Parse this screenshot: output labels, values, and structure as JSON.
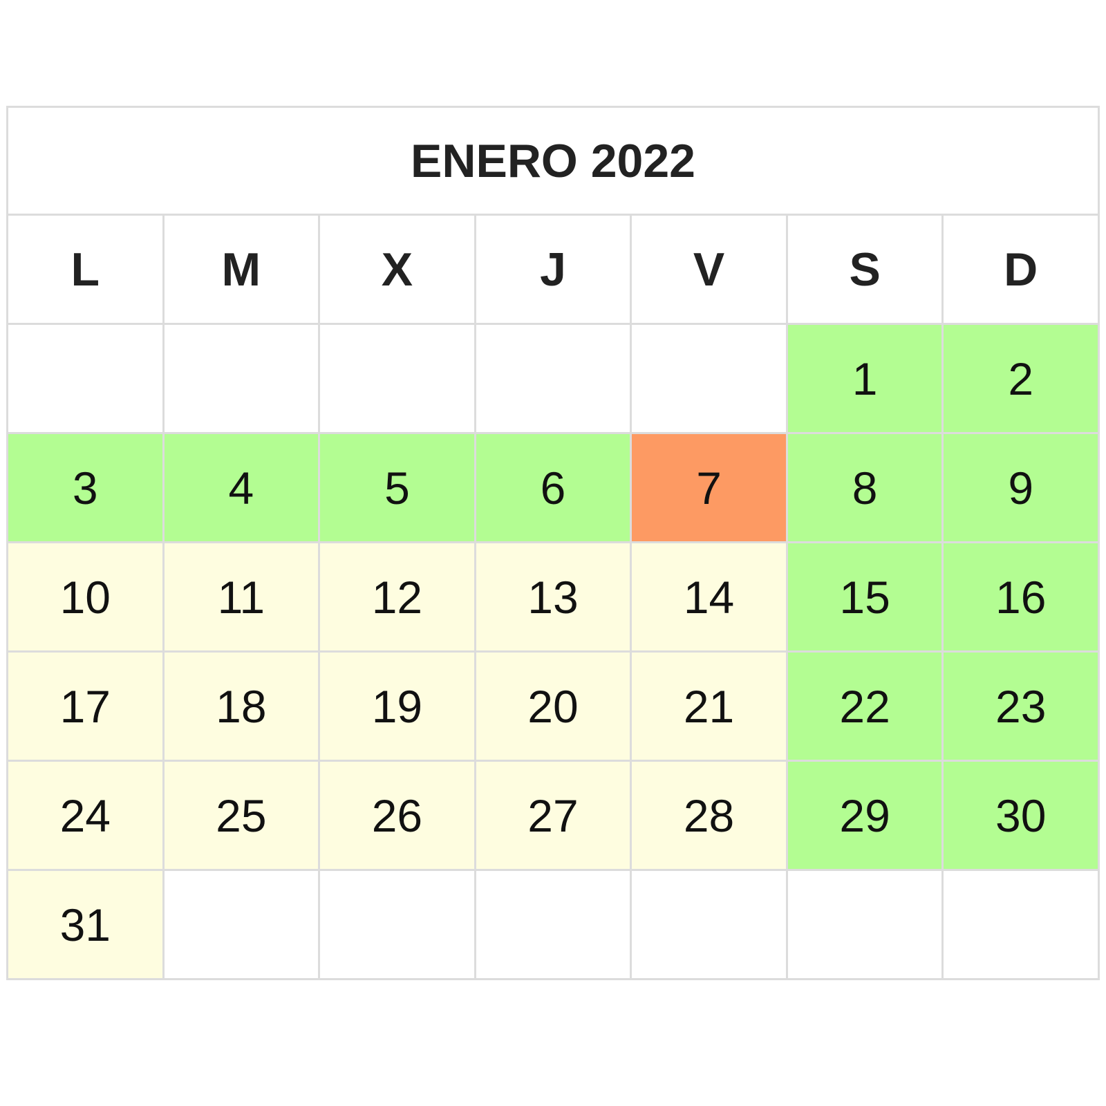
{
  "calendar": {
    "title": "ENERO 2022",
    "weekdays": [
      "L",
      "M",
      "X",
      "J",
      "V",
      "S",
      "D"
    ],
    "colors": {
      "weekend": "#b3fd92",
      "holiday_period": "#b3fd92",
      "highlight": "#fd9a63",
      "workday": "#fefde0",
      "empty": "#ffffff"
    },
    "weeks": [
      [
        {
          "day": "",
          "kind": "empty"
        },
        {
          "day": "",
          "kind": "empty"
        },
        {
          "day": "",
          "kind": "empty"
        },
        {
          "day": "",
          "kind": "empty"
        },
        {
          "day": "",
          "kind": "empty"
        },
        {
          "day": "1",
          "kind": "weekend"
        },
        {
          "day": "2",
          "kind": "weekend"
        }
      ],
      [
        {
          "day": "3",
          "kind": "holiday_period"
        },
        {
          "day": "4",
          "kind": "holiday_period"
        },
        {
          "day": "5",
          "kind": "holiday_period"
        },
        {
          "day": "6",
          "kind": "holiday_period"
        },
        {
          "day": "7",
          "kind": "highlight"
        },
        {
          "day": "8",
          "kind": "weekend"
        },
        {
          "day": "9",
          "kind": "weekend"
        }
      ],
      [
        {
          "day": "10",
          "kind": "workday"
        },
        {
          "day": "11",
          "kind": "workday"
        },
        {
          "day": "12",
          "kind": "workday"
        },
        {
          "day": "13",
          "kind": "workday"
        },
        {
          "day": "14",
          "kind": "workday"
        },
        {
          "day": "15",
          "kind": "weekend"
        },
        {
          "day": "16",
          "kind": "weekend"
        }
      ],
      [
        {
          "day": "17",
          "kind": "workday"
        },
        {
          "day": "18",
          "kind": "workday"
        },
        {
          "day": "19",
          "kind": "workday"
        },
        {
          "day": "20",
          "kind": "workday"
        },
        {
          "day": "21",
          "kind": "workday"
        },
        {
          "day": "22",
          "kind": "weekend"
        },
        {
          "day": "23",
          "kind": "weekend"
        }
      ],
      [
        {
          "day": "24",
          "kind": "workday"
        },
        {
          "day": "25",
          "kind": "workday"
        },
        {
          "day": "26",
          "kind": "workday"
        },
        {
          "day": "27",
          "kind": "workday"
        },
        {
          "day": "28",
          "kind": "workday"
        },
        {
          "day": "29",
          "kind": "weekend"
        },
        {
          "day": "30",
          "kind": "weekend"
        }
      ],
      [
        {
          "day": "31",
          "kind": "workday"
        },
        {
          "day": "",
          "kind": "empty"
        },
        {
          "day": "",
          "kind": "empty"
        },
        {
          "day": "",
          "kind": "empty"
        },
        {
          "day": "",
          "kind": "empty"
        },
        {
          "day": "",
          "kind": "empty"
        },
        {
          "day": "",
          "kind": "empty"
        }
      ]
    ]
  }
}
